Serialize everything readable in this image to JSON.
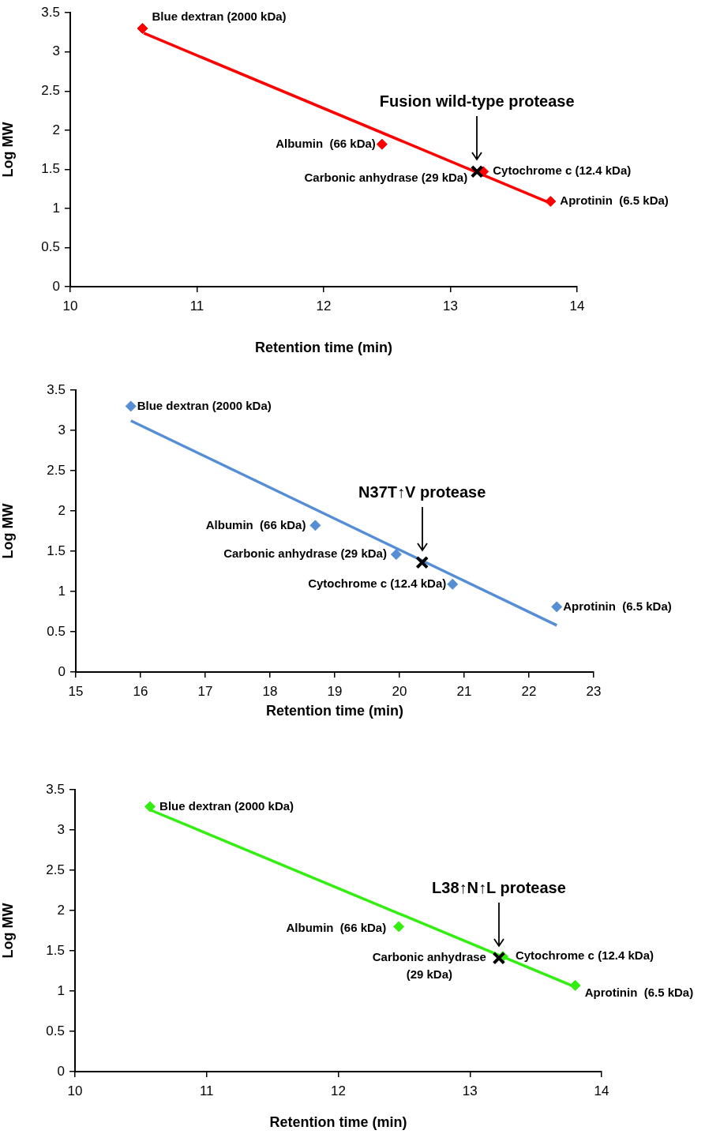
{
  "chart_data": [
    {
      "type": "scatter",
      "xlabel": "Retention time (min)",
      "ylabel": "Log MW",
      "xlim": [
        10,
        14
      ],
      "xticks": [
        10,
        11,
        12,
        13,
        14
      ],
      "ylim": [
        0,
        3.5
      ],
      "yticks": [
        0,
        0.5,
        1,
        1.5,
        2,
        2.5,
        3,
        3.5
      ],
      "grid": false,
      "legend": false,
      "series": [
        {
          "type": "scatter",
          "marker": "diamond",
          "color": "#ff0000",
          "x": [
            10.57,
            12.46,
            13.26,
            13.79
          ],
          "values": [
            3.3,
            1.82,
            1.47,
            1.09
          ]
        },
        {
          "type": "line",
          "marker": "none",
          "line_style": "solid",
          "color": "#ff0000",
          "x": [
            10.58,
            13.8
          ],
          "values": [
            3.24,
            1.06
          ]
        },
        {
          "type": "scatter",
          "marker": "cross",
          "color": "#000000",
          "x": [
            13.21
          ],
          "values": [
            1.47
          ]
        }
      ],
      "annotations": [
        {
          "text": "Blue dextran (2000 kDa)",
          "x": 10.57,
          "y": 3.3
        },
        {
          "text": "Albumin  (66 kDa)",
          "x": 12.46,
          "y": 1.82
        },
        {
          "text": "Carbonic anhydrase (29 kDa)",
          "x": 13.21,
          "y": 1.47
        },
        {
          "text": "Cytochrome c (12.4 kDa)",
          "x": 13.26,
          "y": 1.47
        },
        {
          "text": "Aprotinin  (6.5 kDa)",
          "x": 13.79,
          "y": 1.09
        },
        "Fusion wild-type protease"
      ]
    },
    {
      "type": "scatter",
      "xlabel": "Retention time (min)",
      "ylabel": "Log MW",
      "xlim": [
        15,
        23
      ],
      "xticks": [
        15,
        16,
        17,
        18,
        19,
        20,
        21,
        22,
        23
      ],
      "ylim": [
        0,
        3.5
      ],
      "yticks": [
        0,
        0.5,
        1,
        1.5,
        2,
        2.5,
        3,
        3.5
      ],
      "grid": false,
      "legend": false,
      "series": [
        {
          "type": "scatter",
          "marker": "diamond",
          "color": "#558ed5",
          "x": [
            15.85,
            18.7,
            19.95,
            20.82,
            22.43
          ],
          "values": [
            3.3,
            1.82,
            1.46,
            1.09,
            0.81
          ]
        },
        {
          "type": "line",
          "marker": "none",
          "line_style": "solid",
          "color": "#558ed5",
          "x": [
            15.85,
            22.43
          ],
          "values": [
            3.12,
            0.58
          ]
        },
        {
          "type": "scatter",
          "marker": "cross",
          "color": "#000000",
          "x": [
            20.35
          ],
          "values": [
            1.36
          ]
        }
      ],
      "annotations": [
        {
          "text": "Blue dextran (2000 kDa)",
          "x": 15.85,
          "y": 3.3
        },
        {
          "text": "Albumin  (66 kDa)",
          "x": 18.7,
          "y": 1.82
        },
        {
          "text": "Carbonic anhydrase (29 kDa)",
          "x": 19.95,
          "y": 1.46
        },
        {
          "text": "Cytochrome c (12.4 kDa)",
          "x": 20.82,
          "y": 1.09
        },
        {
          "text": "Aprotinin  (6.5 kDa)",
          "x": 22.43,
          "y": 0.81
        },
        "N37T↑V protease"
      ]
    },
    {
      "type": "scatter",
      "xlabel": "Retention time (min)",
      "ylabel": "Log MW",
      "xlim": [
        10,
        14
      ],
      "xticks": [
        10,
        11,
        12,
        13,
        14
      ],
      "ylim": [
        0,
        3.5
      ],
      "yticks": [
        0,
        0.5,
        1,
        1.5,
        2,
        2.5,
        3,
        3.5
      ],
      "grid": false,
      "legend": false,
      "series": [
        {
          "type": "scatter",
          "marker": "diamond",
          "color": "#33ee11",
          "x": [
            10.57,
            12.46,
            13.25,
            13.8
          ],
          "values": [
            3.29,
            1.8,
            1.43,
            1.07
          ]
        },
        {
          "type": "line",
          "marker": "none",
          "line_style": "solid",
          "color": "#33ee11",
          "x": [
            10.57,
            13.8
          ],
          "values": [
            3.25,
            1.05
          ]
        },
        {
          "type": "scatter",
          "marker": "cross",
          "color": "#000000",
          "x": [
            13.22
          ],
          "values": [
            1.41
          ]
        }
      ],
      "annotations": [
        {
          "text": "Blue dextran (2000 kDa)",
          "x": 10.57,
          "y": 3.29
        },
        {
          "text": "Albumin  (66 kDa)",
          "x": 12.46,
          "y": 1.8
        },
        {
          "text": "Carbonic anhydrase (29 kDa)",
          "x": 13.22,
          "y": 1.41
        },
        {
          "text": "Cytochrome c (12.4 kDa)",
          "x": 13.25,
          "y": 1.43
        },
        {
          "text": "Aprotinin  (6.5 kDa)",
          "x": 13.8,
          "y": 1.07
        },
        "L38↑N↑L protease"
      ]
    }
  ]
}
